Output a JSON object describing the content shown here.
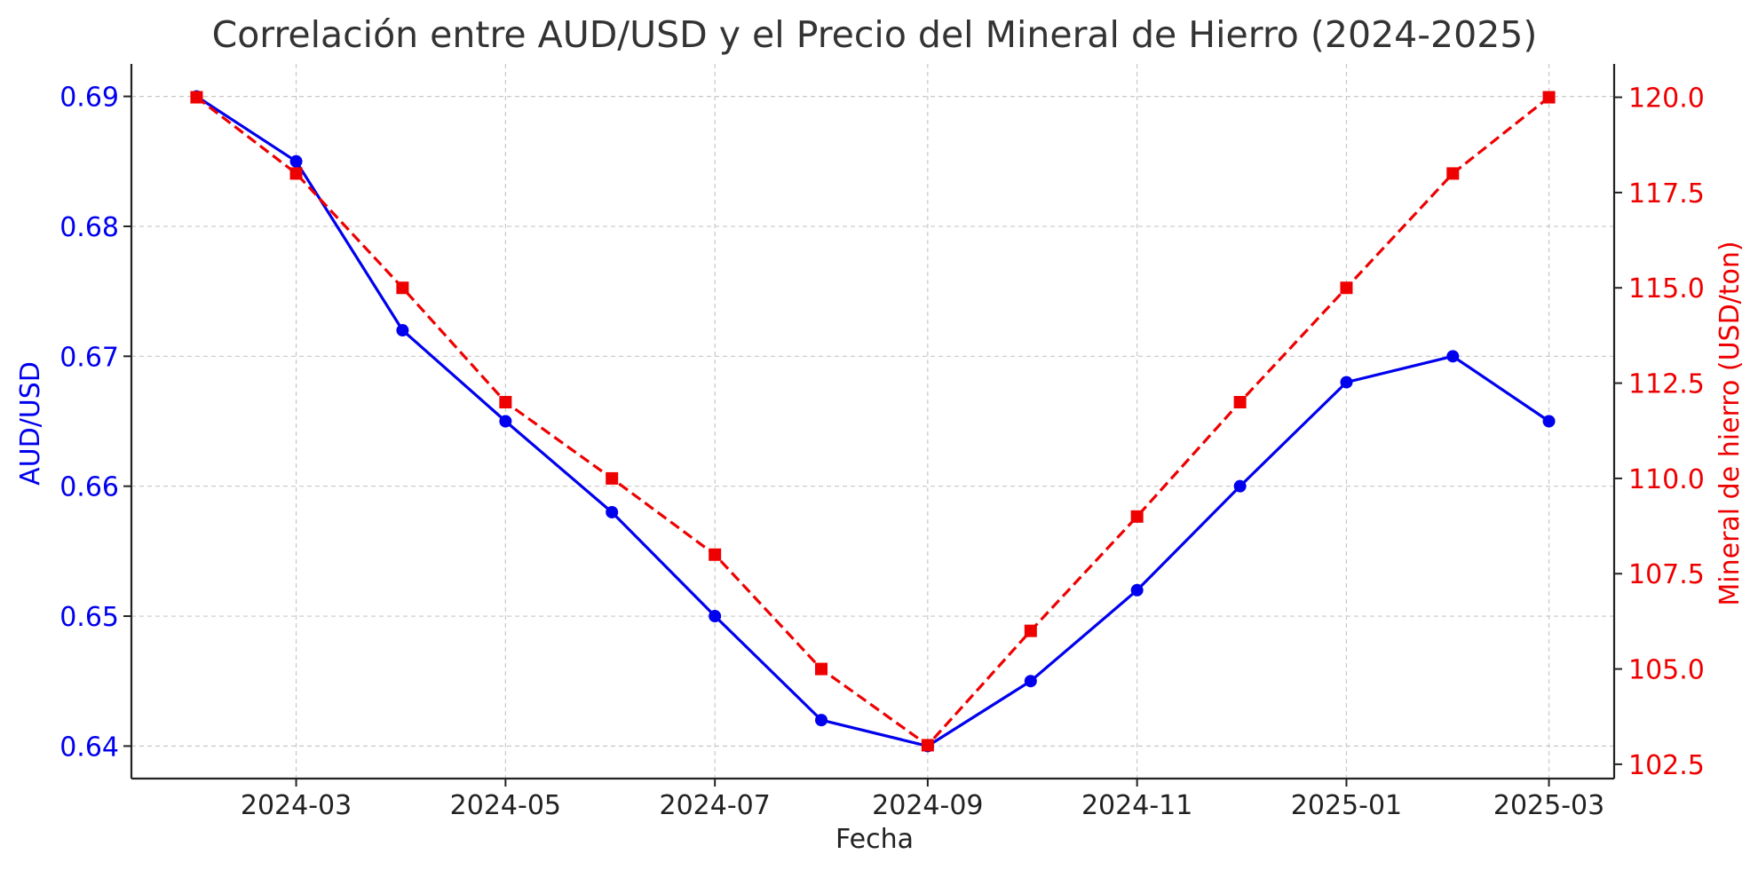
{
  "chart_data": {
    "type": "line",
    "title": "Correlación entre AUD/USD y el Precio del Mineral de Hierro (2024-2025)",
    "xlabel": "Fecha",
    "ylabel_left": "AUD/USD",
    "ylabel_right": "Mineral de hierro (USD/ton)",
    "x": [
      "2024-02",
      "2024-03",
      "2024-04",
      "2024-05",
      "2024-06",
      "2024-07",
      "2024-08",
      "2024-09",
      "2024-10",
      "2024-11",
      "2024-12",
      "2025-01",
      "2025-02",
      "2025-03"
    ],
    "x_ticks": [
      "2024-03",
      "2024-05",
      "2024-07",
      "2024-09",
      "2024-11",
      "2025-01",
      "2025-03"
    ],
    "xlim": [
      "2024-01-13",
      "2025-03-20"
    ],
    "ylim_left": [
      0.6375,
      0.6925
    ],
    "yticks_left": [
      0.64,
      0.65,
      0.66,
      0.67,
      0.68,
      0.69
    ],
    "ylim_right": [
      102.125,
      120.875
    ],
    "yticks_right": [
      102.5,
      105.0,
      107.5,
      110.0,
      112.5,
      115.0,
      117.5,
      120.0
    ],
    "grid": true,
    "series": [
      {
        "axis": "left",
        "color": "#0000ee",
        "line_style": "solid",
        "marker": "circle",
        "values": [
          0.69,
          0.685,
          0.672,
          0.665,
          0.658,
          0.65,
          0.642,
          0.64,
          0.645,
          0.652,
          0.66,
          0.668,
          0.67,
          0.665
        ]
      },
      {
        "axis": "right",
        "color": "#ee0000",
        "line_style": "dashed",
        "marker": "square",
        "values": [
          120,
          118,
          115,
          112,
          110,
          108,
          105,
          103,
          106,
          109,
          112,
          115,
          118,
          120
        ]
      }
    ]
  }
}
